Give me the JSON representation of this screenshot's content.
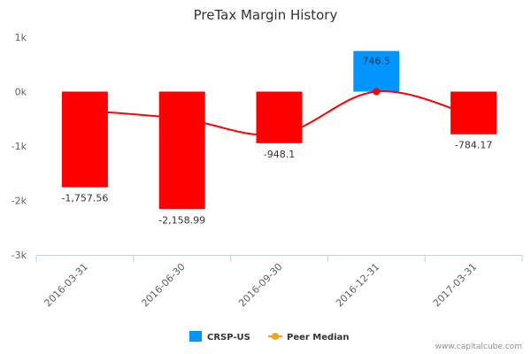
{
  "chart_data": {
    "type": "bar",
    "title": "PreTax Margin History",
    "categories": [
      "2016-03-31",
      "2016-06-30",
      "2016-09-30",
      "2016-12-31",
      "2017-03-31"
    ],
    "series": [
      {
        "name": "CRSP-US",
        "values": [
          -1757.56,
          -2158.99,
          -948.1,
          746.5,
          -784.17
        ],
        "labels": [
          "-1,757.56",
          "-2,158.99",
          "-948.1",
          "746.5",
          "-784.17"
        ],
        "positive_color": "#0095ff",
        "negative_color": "#ff0000"
      },
      {
        "name": "Peer Median",
        "type": "line",
        "values": [
          -350,
          -500,
          -780,
          0,
          -450
        ],
        "color": "#ff0000",
        "legend_color": "#f7a21e"
      }
    ],
    "ylim": [
      -3000,
      1000
    ],
    "yticks": [
      1000,
      0,
      -1000,
      -2000,
      -3000
    ],
    "ytick_labels": [
      "1k",
      "0k",
      "-1k",
      "-2k",
      "-3k"
    ],
    "xlabel": "",
    "ylabel": "",
    "legend": "bottom-center",
    "grid": false
  },
  "credit": "www.capitalcube.com"
}
